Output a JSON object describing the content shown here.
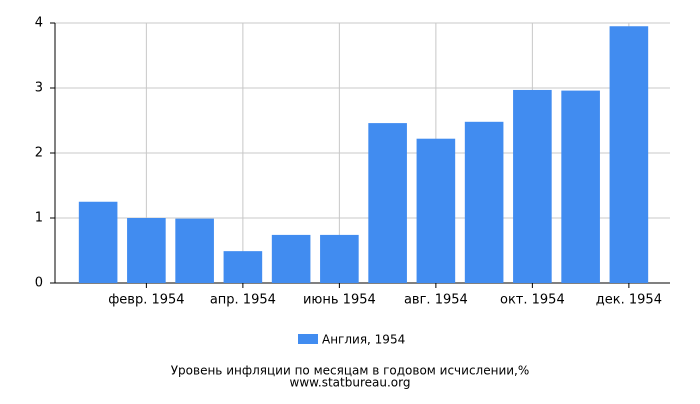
{
  "chart_data": {
    "type": "bar",
    "title": "Уровень инфляции по месяцам в годовом исчислении,%",
    "subtitle": "www.statbureau.org",
    "categories": [
      null,
      "февр. 1954",
      null,
      "апр. 1954",
      null,
      "июнь 1954",
      null,
      "авг. 1954",
      null,
      "окт. 1954",
      null,
      "дек. 1954"
    ],
    "series": [
      {
        "name": "Англия, 1954",
        "color": "#418cf0",
        "values": [
          1.25,
          1.0,
          0.99,
          0.49,
          0.74,
          0.74,
          2.46,
          2.22,
          2.48,
          2.97,
          2.96,
          3.95
        ]
      }
    ],
    "ylim": [
      0,
      4
    ],
    "yticks": [
      0,
      1,
      2,
      3,
      4
    ],
    "grid": true
  }
}
